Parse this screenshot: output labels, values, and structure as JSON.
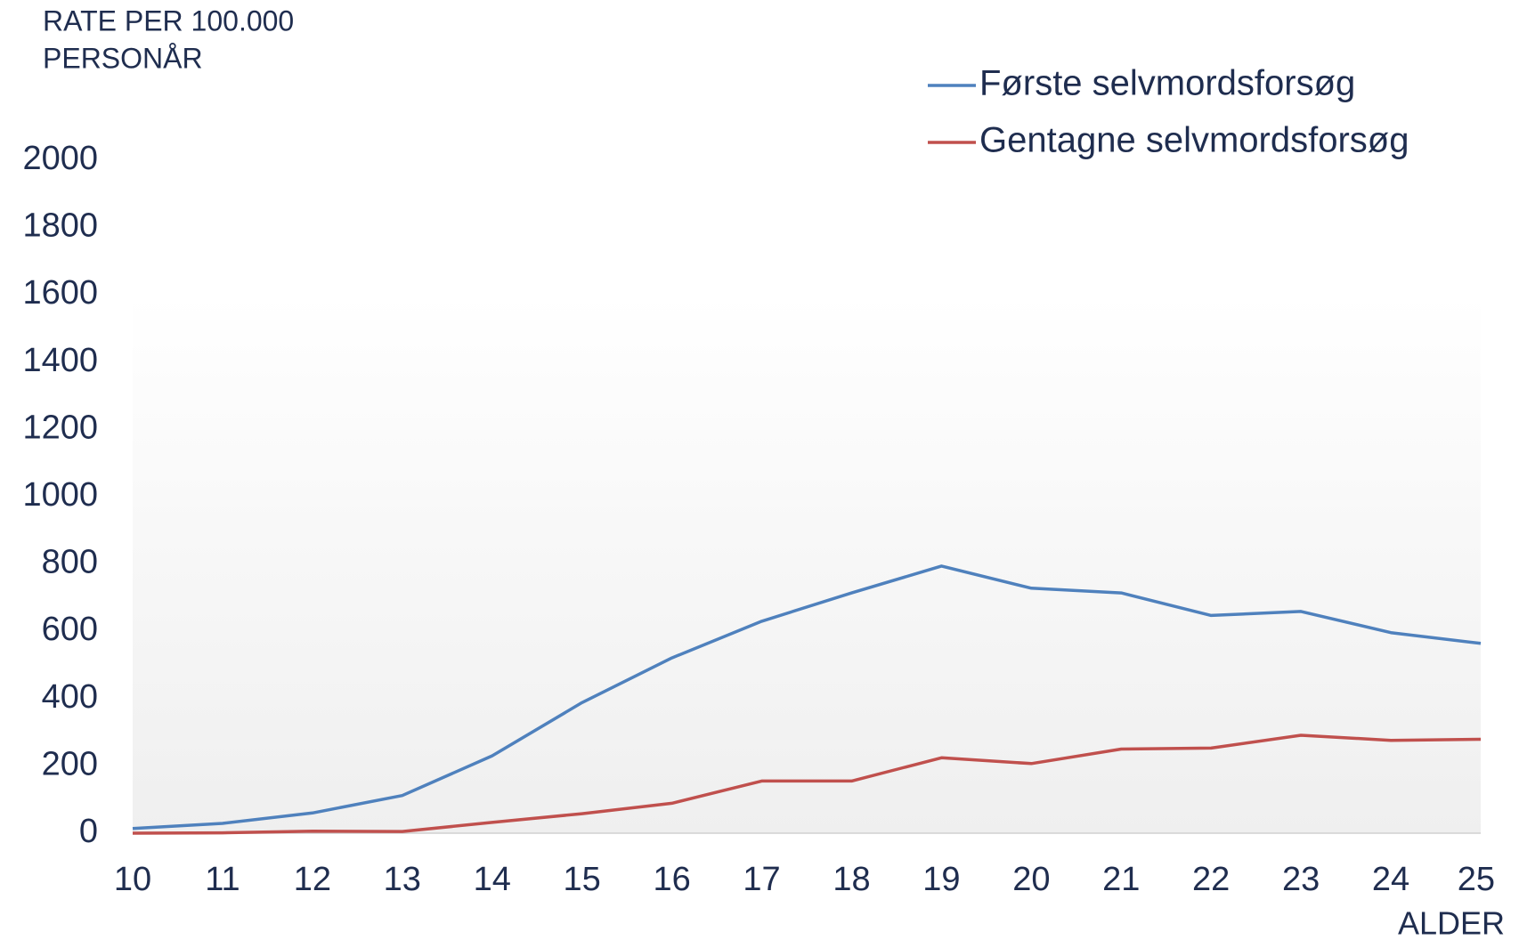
{
  "chart_data": {
    "type": "line",
    "y_label": [
      "RATE PER 100.000",
      "PERSONÅR"
    ],
    "x_label": "ALDER",
    "categories": [
      "10",
      "11",
      "12",
      "13",
      "14",
      "15",
      "16",
      "17",
      "18",
      "19",
      "20",
      "21",
      "22",
      "23",
      "24",
      "25"
    ],
    "series": [
      {
        "name": "Første selvmordsforsøg",
        "color": "#4f81bd",
        "values": [
          14,
          29,
          60,
          112,
          230,
          388,
          521,
          630,
          714,
          794,
          728,
          714,
          647,
          659,
          596,
          564
        ]
      },
      {
        "name": "Gentagne selvmordsforsøg",
        "color": "#c0504d",
        "values": [
          0,
          1,
          6,
          5,
          32,
          58,
          89,
          155,
          155,
          224,
          207,
          250,
          253,
          291,
          276,
          279
        ]
      }
    ],
    "ylim": [
      0,
      2000
    ],
    "yticks": [
      0,
      200,
      400,
      600,
      800,
      1000,
      1200,
      1400,
      1600,
      1800,
      2000
    ],
    "legend": "top-right"
  }
}
